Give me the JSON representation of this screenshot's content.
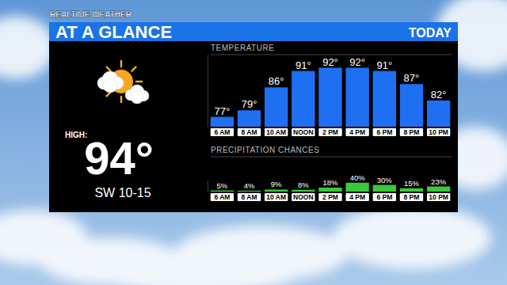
{
  "header": {
    "brand": "REALTIME WEATHER",
    "title": "AT A GLANCE",
    "period": "TODAY"
  },
  "summary": {
    "high_label": "HIGH:",
    "high": "94°",
    "wind": "SW 10-15"
  },
  "chart_data": [
    {
      "type": "bar",
      "title": "TEMPERATURE",
      "categories": [
        "6 AM",
        "8 AM",
        "10 AM",
        "NOON",
        "2 PM",
        "4 PM",
        "6 PM",
        "8 PM",
        "10 PM"
      ],
      "values": [
        77,
        79,
        86,
        91,
        92,
        92,
        91,
        87,
        82
      ],
      "value_labels": [
        "77°",
        "79°",
        "86°",
        "91°",
        "92°",
        "92°",
        "91°",
        "87°",
        "82°"
      ],
      "color": "#1f6ff2",
      "ylim": [
        74,
        96
      ],
      "yticks": [],
      "data_labels": true,
      "tick_labels": "x"
    },
    {
      "type": "bar",
      "title": "PRECIPITATION CHANCES",
      "categories": [
        "6 AM",
        "8 AM",
        "10 AM",
        "NOON",
        "2 PM",
        "4 PM",
        "6 PM",
        "8 PM",
        "10 PM"
      ],
      "values": [
        5,
        4,
        9,
        8,
        18,
        40,
        30,
        15,
        23
      ],
      "value_labels": [
        "5%",
        "4%",
        "9%",
        "8%",
        "18%",
        "40%",
        "30%",
        "15%",
        "23%"
      ],
      "color": "#3cc83c",
      "ylim": [
        0,
        50
      ],
      "yticks": [],
      "data_labels": true,
      "tick_labels": "x"
    }
  ]
}
